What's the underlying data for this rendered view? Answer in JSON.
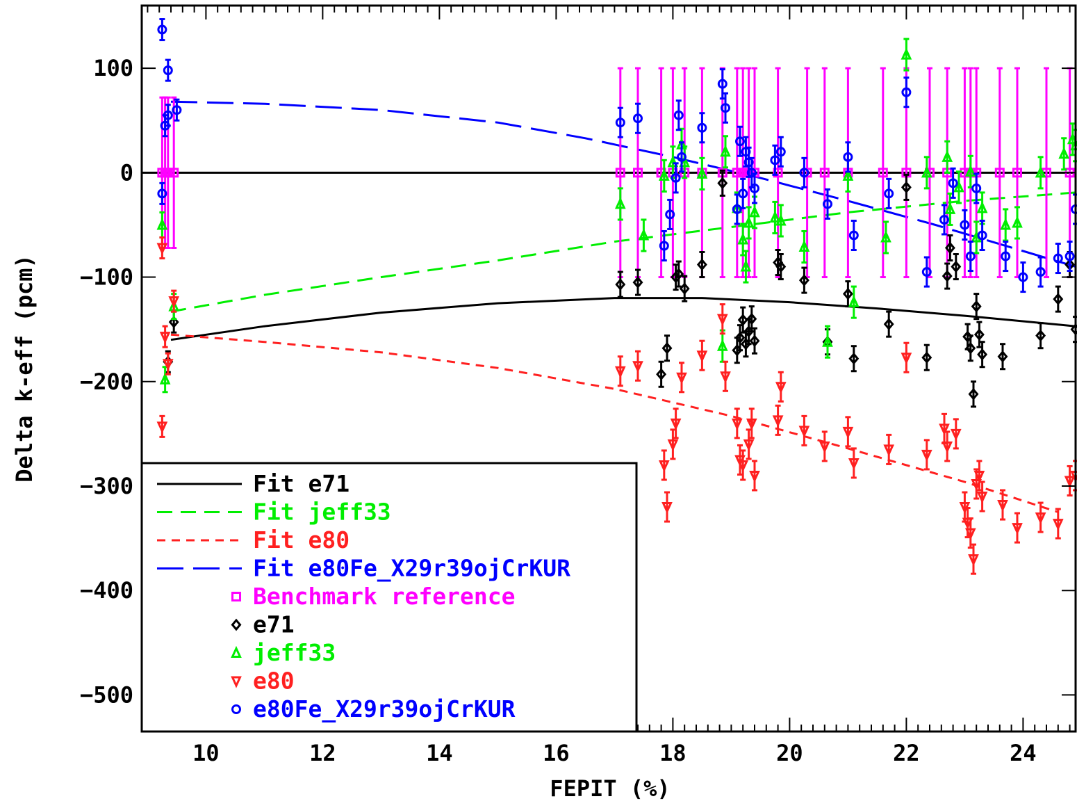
{
  "chart_data": {
    "type": "scatter",
    "title": "",
    "xlabel": "FEPIT (%)",
    "ylabel": "Delta k-eff (pcm)",
    "xlim": [
      8.9,
      24.9
    ],
    "ylim": [
      -535,
      160
    ],
    "x_ticks": [
      10,
      12,
      14,
      16,
      18,
      20,
      22,
      24
    ],
    "y_ticks": [
      100,
      0,
      -100,
      -200,
      -300,
      -400,
      -500
    ],
    "x_tick_labels": [
      "10",
      "12",
      "14",
      "16",
      "18",
      "20",
      "22",
      "24"
    ],
    "y_tick_labels": [
      "100",
      "0",
      "−100",
      "−200",
      "−300",
      "−400",
      "−500"
    ],
    "grid": false,
    "legend_position": "bottom-left",
    "fits": [
      {
        "name": "Fit e71",
        "color": "#000000",
        "dash": "solid",
        "x": [
          9.4,
          11,
          13,
          15,
          17,
          18.5,
          20,
          21.5,
          23,
          24.9
        ],
        "y": [
          -160,
          -147,
          -134,
          -125,
          -120,
          -120,
          -124,
          -130,
          -137,
          -147
        ]
      },
      {
        "name": "Fit jeff33",
        "color": "#00ee00",
        "dash": "medium",
        "x": [
          9.4,
          11,
          13,
          15,
          17,
          19,
          21,
          23,
          24.9
        ],
        "y": [
          -133,
          -117,
          -100,
          -84,
          -66,
          -52,
          -38,
          -27,
          -19
        ]
      },
      {
        "name": "Fit e80",
        "color": "#ff2020",
        "dash": "short",
        "x": [
          9.4,
          11,
          13,
          15,
          17,
          19,
          21,
          23,
          24.6
        ],
        "y": [
          -155,
          -162,
          -172,
          -187,
          -207,
          -233,
          -264,
          -296,
          -325
        ]
      },
      {
        "name": "Fit e80Fe_X29r39ojCrKUR",
        "color": "#0000ff",
        "dash": "long",
        "x": [
          9.4,
          11,
          13,
          15,
          16.5,
          18,
          19.5,
          21,
          22.5,
          24,
          24.9
        ],
        "y": [
          68,
          66,
          60,
          48,
          33,
          15,
          -5,
          -27,
          -50,
          -75,
          -90
        ]
      }
    ],
    "series": [
      {
        "name": "Benchmark reference",
        "color": "#ff00ff",
        "marker": "square",
        "x": [
          9.25,
          9.3,
          9.35,
          9.45,
          17.1,
          17.4,
          17.8,
          18,
          18.2,
          18.5,
          18.85,
          19.1,
          19.2,
          19.3,
          19.4,
          19.8,
          20.3,
          20.6,
          21,
          21.6,
          22,
          22.4,
          22.7,
          23,
          23.1,
          23.2,
          23.6,
          23.9,
          24.4,
          24.8
        ],
        "y": [
          0,
          0,
          0,
          0,
          0,
          0,
          0,
          0,
          0,
          0,
          0,
          0,
          0,
          0,
          0,
          0,
          0,
          0,
          0,
          0,
          0,
          0,
          0,
          0,
          0,
          0,
          0,
          0,
          0,
          0
        ],
        "yerr": [
          72,
          72,
          72,
          72,
          100,
          100,
          100,
          100,
          100,
          100,
          100,
          100,
          100,
          100,
          100,
          100,
          100,
          100,
          100,
          100,
          100,
          100,
          100,
          100,
          100,
          100,
          100,
          100,
          100,
          100
        ]
      },
      {
        "name": "e71",
        "color": "#000000",
        "marker": "diamond",
        "x": [
          9.45,
          9.35,
          17.1,
          17.4,
          17.8,
          17.9,
          18.05,
          18.1,
          18.2,
          18.5,
          18.85,
          19.1,
          19.15,
          19.2,
          19.25,
          19.3,
          19.35,
          19.4,
          19.8,
          19.85,
          20.25,
          20.65,
          21,
          21.1,
          21.7,
          22,
          22.35,
          22.7,
          22.75,
          22.85,
          23.05,
          23.1,
          23.15,
          23.2,
          23.25,
          23.3,
          23.65,
          24.3,
          24.6,
          24.8,
          24.9
        ],
        "y": [
          -143,
          -181,
          -107,
          -105,
          -193,
          -168,
          -100,
          -97,
          -111,
          -88,
          -10,
          -170,
          -158,
          -141,
          -164,
          -152,
          -140,
          -161,
          -86,
          -90,
          -103,
          -162,
          -116,
          -178,
          -145,
          -14,
          -177,
          -99,
          -72,
          -90,
          -157,
          -168,
          -212,
          -128,
          -155,
          -174,
          -176,
          -156,
          -121,
          -88,
          -150
        ],
        "yerr": [
          10,
          10,
          12,
          12,
          12,
          12,
          12,
          12,
          12,
          12,
          12,
          12,
          12,
          12,
          12,
          12,
          12,
          12,
          12,
          12,
          12,
          12,
          12,
          12,
          12,
          12,
          12,
          12,
          12,
          12,
          12,
          12,
          12,
          12,
          12,
          12,
          12,
          12,
          12,
          12,
          12
        ]
      },
      {
        "name": "jeff33",
        "color": "#00ee00",
        "marker": "up-triangle",
        "x": [
          9.25,
          9.3,
          9.45,
          17.1,
          17.5,
          17.85,
          18.0,
          18.15,
          18.2,
          18.5,
          18.85,
          18.9,
          19.1,
          19.2,
          19.25,
          19.3,
          19.4,
          19.75,
          19.85,
          20.25,
          20.65,
          21.0,
          21.1,
          21.65,
          22.0,
          22.35,
          22.7,
          22.75,
          22.9,
          23.1,
          23.2,
          23.3,
          23.7,
          23.9,
          24.3,
          24.7,
          24.85,
          24.9
        ],
        "y": [
          -50,
          -198,
          -128,
          -30,
          -60,
          -3,
          10,
          27,
          10,
          -1,
          -166,
          20,
          -34,
          -64,
          -90,
          -48,
          -38,
          -43,
          -46,
          -71,
          -162,
          -3,
          -124,
          -62,
          113,
          0,
          15,
          -35,
          -14,
          1,
          -62,
          -34,
          -50,
          -48,
          0,
          18,
          32,
          26
        ],
        "yerr": [
          12,
          12,
          12,
          15,
          15,
          15,
          15,
          15,
          15,
          15,
          15,
          15,
          15,
          15,
          15,
          15,
          15,
          15,
          15,
          15,
          15,
          15,
          15,
          15,
          15,
          15,
          15,
          15,
          15,
          15,
          15,
          15,
          15,
          15,
          15,
          15,
          15,
          15
        ]
      },
      {
        "name": "e80",
        "color": "#ff2020",
        "marker": "down-triangle",
        "x": [
          9.25,
          9.3,
          9.35,
          9.45,
          9.25,
          17.1,
          17.4,
          17.85,
          17.9,
          18.0,
          18.05,
          18.15,
          18.5,
          18.85,
          18.9,
          19.1,
          19.15,
          19.2,
          19.3,
          19.35,
          19.4,
          19.8,
          19.85,
          20.25,
          20.6,
          21.0,
          21.1,
          21.7,
          22.0,
          22.35,
          22.65,
          22.7,
          22.85,
          23.0,
          23.05,
          23.1,
          23.15,
          23.2,
          23.25,
          23.3,
          23.65,
          23.9,
          24.3,
          24.6,
          24.8,
          24.9
        ],
        "y": [
          -72,
          -157,
          -183,
          -123,
          -243,
          -190,
          -185,
          -280,
          -320,
          -260,
          -240,
          -196,
          -175,
          -140,
          -195,
          -240,
          -275,
          -280,
          -260,
          -240,
          -290,
          -237,
          -205,
          -247,
          -262,
          -248,
          -278,
          -265,
          -177,
          -270,
          -245,
          -262,
          -250,
          -320,
          -335,
          -345,
          -370,
          -298,
          -290,
          -310,
          -318,
          -340,
          -330,
          -336,
          -295,
          -290
        ],
        "yerr": [
          10,
          10,
          10,
          10,
          10,
          14,
          14,
          14,
          14,
          14,
          14,
          14,
          14,
          14,
          14,
          14,
          14,
          14,
          14,
          14,
          14,
          14,
          14,
          14,
          14,
          14,
          14,
          14,
          14,
          14,
          14,
          14,
          14,
          14,
          14,
          14,
          14,
          14,
          14,
          14,
          14,
          14,
          14,
          14,
          14,
          14
        ]
      },
      {
        "name": "e80Fe_X29r39ojCrKUR",
        "color": "#0000ff",
        "marker": "circle",
        "x": [
          9.25,
          9.35,
          9.5,
          9.3,
          9.35,
          9.25,
          17.1,
          17.4,
          17.85,
          17.95,
          18.05,
          18.1,
          18.15,
          18.5,
          18.85,
          18.9,
          19.1,
          19.15,
          19.2,
          19.25,
          19.3,
          19.35,
          19.4,
          19.75,
          19.85,
          20.25,
          20.65,
          21.0,
          21.1,
          21.7,
          22.0,
          22.35,
          22.65,
          22.8,
          23.0,
          23.1,
          23.2,
          23.3,
          23.7,
          24.0,
          24.3,
          24.6,
          24.8,
          24.9
        ],
        "y": [
          137,
          98,
          60,
          45,
          55,
          -20,
          48,
          52,
          -70,
          -40,
          -5,
          55,
          15,
          43,
          85,
          62,
          -35,
          30,
          -20,
          20,
          10,
          0,
          -15,
          12,
          20,
          0,
          -30,
          15,
          -60,
          -20,
          77,
          -95,
          -45,
          -10,
          -50,
          -80,
          -15,
          -60,
          -80,
          -100,
          -95,
          -82,
          -80,
          -35
        ],
        "yerr": [
          10,
          10,
          10,
          10,
          10,
          10,
          14,
          14,
          14,
          14,
          14,
          14,
          14,
          14,
          14,
          14,
          14,
          14,
          14,
          14,
          14,
          14,
          14,
          14,
          14,
          14,
          14,
          14,
          14,
          14,
          14,
          14,
          14,
          14,
          14,
          14,
          14,
          14,
          14,
          14,
          14,
          14,
          14,
          14
        ]
      }
    ],
    "zero_line": 0,
    "legend": [
      {
        "label": "Fit e71",
        "color": "#000000",
        "kind": "line",
        "dash": "solid"
      },
      {
        "label": "Fit jeff33",
        "color": "#00ee00",
        "kind": "line",
        "dash": "medium"
      },
      {
        "label": "Fit e80",
        "color": "#ff2020",
        "kind": "line",
        "dash": "short"
      },
      {
        "label": "Fit e80Fe_X29r39ojCrKUR",
        "color": "#0000ff",
        "kind": "line",
        "dash": "long"
      },
      {
        "label": "Benchmark reference",
        "color": "#ff00ff",
        "kind": "marker",
        "marker": "square"
      },
      {
        "label": "e71",
        "color": "#000000",
        "kind": "marker",
        "marker": "diamond"
      },
      {
        "label": "jeff33",
        "color": "#00ee00",
        "kind": "marker",
        "marker": "up-triangle"
      },
      {
        "label": "e80",
        "color": "#ff2020",
        "kind": "marker",
        "marker": "down-triangle"
      },
      {
        "label": "e80Fe_X29r39ojCrKUR",
        "color": "#0000ff",
        "kind": "marker",
        "marker": "circle"
      }
    ]
  }
}
